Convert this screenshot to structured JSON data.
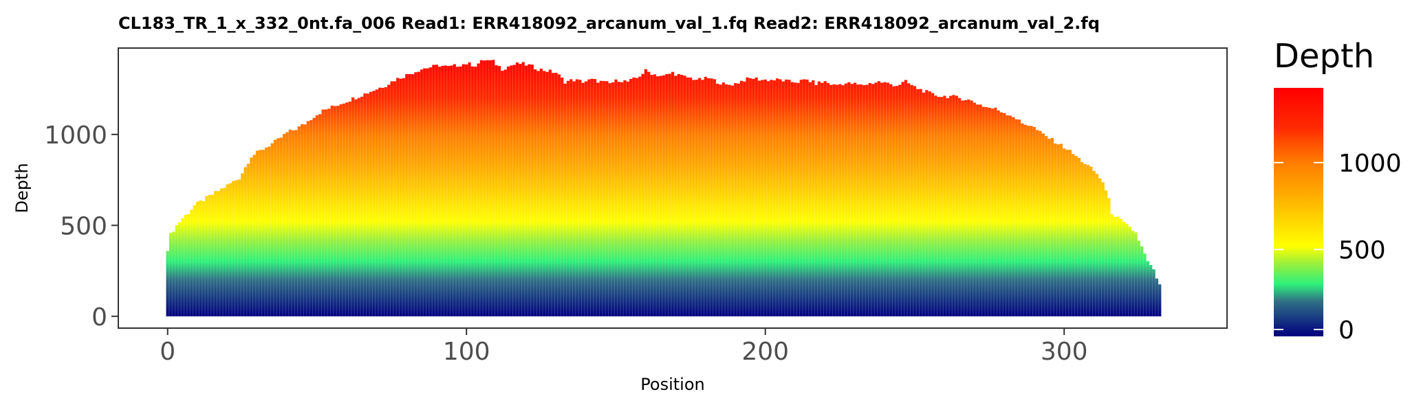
{
  "chart_data": {
    "type": "bar",
    "title": "CL183_TR_1_x_332_0nt.fa_006   Read1: ERR418092_arcanum_val_1.fq   Read2: ERR418092_arcanum_val_2.fq",
    "xlabel": "Position",
    "ylabel": "Depth",
    "xlim": [
      -16.5,
      354.5
    ],
    "ylim": [
      -65,
      1475
    ],
    "x_ticks": [
      0,
      100,
      200,
      300
    ],
    "y_ticks": [
      0,
      500,
      1000
    ],
    "grid": false,
    "legend": {
      "title": "Depth",
      "type": "colorbar",
      "placement": "right",
      "ticks": [
        0,
        500,
        1000
      ],
      "range": [
        0,
        1430
      ],
      "colors": [
        {
          "value": 0,
          "color": "#00007f"
        },
        {
          "value": 200,
          "color": "#2f6f85"
        },
        {
          "value": 300,
          "color": "#2ef07a"
        },
        {
          "value": 420,
          "color": "#9bf03c"
        },
        {
          "value": 520,
          "color": "#ffff00"
        },
        {
          "value": 800,
          "color": "#ffb000"
        },
        {
          "value": 1000,
          "color": "#ff7d00"
        },
        {
          "value": 1200,
          "color": "#ff2a00"
        },
        {
          "value": 1430,
          "color": "#ff0000"
        }
      ]
    },
    "profile": [
      [
        0,
        370
      ],
      [
        1,
        450
      ],
      [
        3,
        500
      ],
      [
        5,
        540
      ],
      [
        7,
        570
      ],
      [
        9,
        610
      ],
      [
        12,
        640
      ],
      [
        15,
        670
      ],
      [
        18,
        700
      ],
      [
        21,
        730
      ],
      [
        24,
        760
      ],
      [
        26,
        820
      ],
      [
        28,
        880
      ],
      [
        31,
        910
      ],
      [
        34,
        940
      ],
      [
        37,
        970
      ],
      [
        40,
        1010
      ],
      [
        43,
        1030
      ],
      [
        46,
        1060
      ],
      [
        49,
        1100
      ],
      [
        52,
        1130
      ],
      [
        55,
        1150
      ],
      [
        58,
        1170
      ],
      [
        61,
        1190
      ],
      [
        64,
        1210
      ],
      [
        67,
        1230
      ],
      [
        70,
        1250
      ],
      [
        73,
        1270
      ],
      [
        76,
        1300
      ],
      [
        79,
        1320
      ],
      [
        82,
        1340
      ],
      [
        85,
        1360
      ],
      [
        88,
        1370
      ],
      [
        91,
        1380
      ],
      [
        94,
        1370
      ],
      [
        97,
        1380
      ],
      [
        100,
        1390
      ],
      [
        103,
        1380
      ],
      [
        106,
        1410
      ],
      [
        109,
        1400
      ],
      [
        112,
        1360
      ],
      [
        115,
        1380
      ],
      [
        118,
        1390
      ],
      [
        121,
        1380
      ],
      [
        124,
        1360
      ],
      [
        127,
        1350
      ],
      [
        130,
        1340
      ],
      [
        133,
        1290
      ],
      [
        136,
        1300
      ],
      [
        139,
        1290
      ],
      [
        142,
        1300
      ],
      [
        145,
        1290
      ],
      [
        148,
        1280
      ],
      [
        151,
        1300
      ],
      [
        154,
        1290
      ],
      [
        157,
        1310
      ],
      [
        160,
        1350
      ],
      [
        163,
        1330
      ],
      [
        166,
        1320
      ],
      [
        169,
        1340
      ],
      [
        172,
        1320
      ],
      [
        175,
        1310
      ],
      [
        178,
        1300
      ],
      [
        181,
        1310
      ],
      [
        184,
        1290
      ],
      [
        187,
        1270
      ],
      [
        190,
        1280
      ],
      [
        193,
        1300
      ],
      [
        196,
        1310
      ],
      [
        199,
        1300
      ],
      [
        202,
        1300
      ],
      [
        205,
        1300
      ],
      [
        208,
        1290
      ],
      [
        211,
        1290
      ],
      [
        214,
        1300
      ],
      [
        217,
        1280
      ],
      [
        220,
        1290
      ],
      [
        223,
        1270
      ],
      [
        226,
        1280
      ],
      [
        229,
        1280
      ],
      [
        232,
        1270
      ],
      [
        235,
        1280
      ],
      [
        238,
        1290
      ],
      [
        241,
        1280
      ],
      [
        244,
        1270
      ],
      [
        247,
        1290
      ],
      [
        250,
        1260
      ],
      [
        253,
        1240
      ],
      [
        256,
        1220
      ],
      [
        259,
        1210
      ],
      [
        262,
        1210
      ],
      [
        265,
        1200
      ],
      [
        268,
        1190
      ],
      [
        271,
        1170
      ],
      [
        274,
        1150
      ],
      [
        277,
        1140
      ],
      [
        280,
        1120
      ],
      [
        283,
        1100
      ],
      [
        286,
        1060
      ],
      [
        289,
        1050
      ],
      [
        292,
        1010
      ],
      [
        295,
        980
      ],
      [
        298,
        950
      ],
      [
        301,
        920
      ],
      [
        304,
        880
      ],
      [
        307,
        840
      ],
      [
        310,
        800
      ],
      [
        313,
        740
      ],
      [
        315,
        640
      ],
      [
        316,
        570
      ],
      [
        318,
        540
      ],
      [
        321,
        500
      ],
      [
        324,
        460
      ],
      [
        326,
        380
      ],
      [
        328,
        300
      ],
      [
        330,
        250
      ],
      [
        332,
        170
      ],
      [
        333,
        0
      ],
      [
        336,
        0
      ]
    ]
  }
}
